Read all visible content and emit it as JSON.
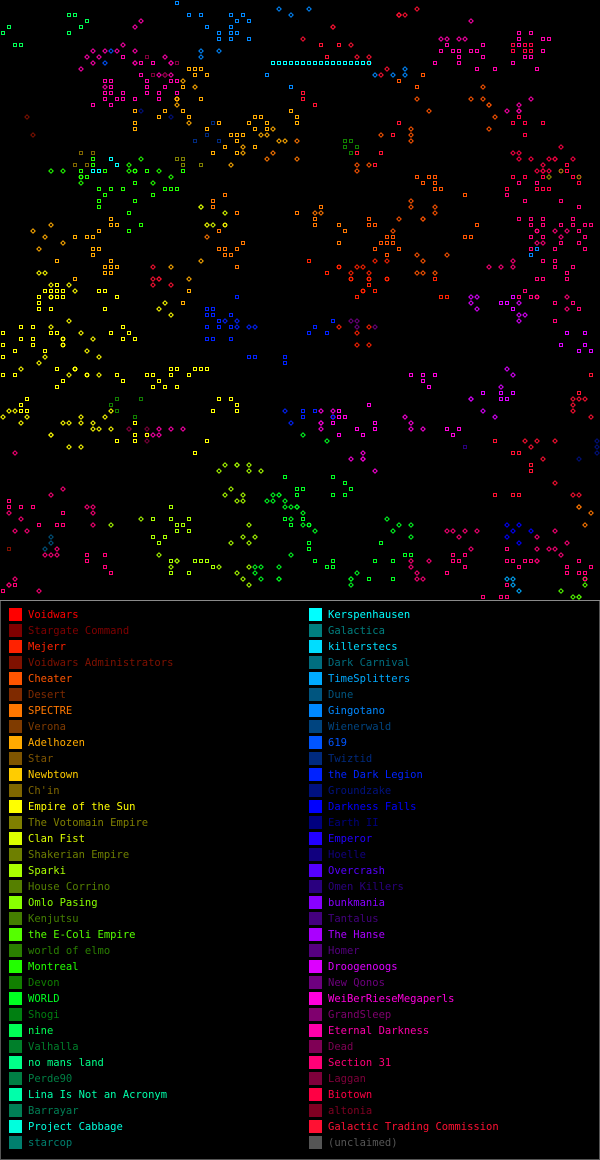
{
  "map": {
    "grid_cells": 100,
    "colors": {
      "background": "#000000",
      "separator": "#8a8a8a"
    }
  },
  "legend": {
    "left": [
      {
        "name": "Voidwars",
        "color": "#ff0000"
      },
      {
        "name": "Stargate Command",
        "color": "#7f0000"
      },
      {
        "name": "Mejerr",
        "color": "#ff2200"
      },
      {
        "name": "Voidwars Administrators",
        "color": "#7f1100"
      },
      {
        "name": "Cheater",
        "color": "#ff5500"
      },
      {
        "name": "Desert",
        "color": "#7f2a00"
      },
      {
        "name": "SPECTRE",
        "color": "#ff7700"
      },
      {
        "name": "Verona",
        "color": "#7f3b00"
      },
      {
        "name": "Adelhozen",
        "color": "#ffaa00"
      },
      {
        "name": "Star",
        "color": "#7f5500"
      },
      {
        "name": "Newbtown",
        "color": "#ffcc00"
      },
      {
        "name": "Ch'in",
        "color": "#7f6600"
      },
      {
        "name": "Empire of the Sun",
        "color": "#ffff00"
      },
      {
        "name": "The Votomain Empire",
        "color": "#7f7f00"
      },
      {
        "name": "Clan Fist",
        "color": "#ddff00"
      },
      {
        "name": "Shakerian Empire",
        "color": "#6e7f00"
      },
      {
        "name": "Sparki",
        "color": "#aaff00"
      },
      {
        "name": "House Corrino",
        "color": "#557f00"
      },
      {
        "name": "Omlo Pasing",
        "color": "#88ff00"
      },
      {
        "name": "Kenjutsu",
        "color": "#447f00"
      },
      {
        "name": "the E-Coli Empire",
        "color": "#55ff00"
      },
      {
        "name": "world of elmo",
        "color": "#2a7f00"
      },
      {
        "name": "Montreal",
        "color": "#22ff00"
      },
      {
        "name": "Devon",
        "color": "#117f00"
      },
      {
        "name": "WORLD",
        "color": "#00ff22"
      },
      {
        "name": "Shogi",
        "color": "#007f11"
      },
      {
        "name": "nine",
        "color": "#00ff55"
      },
      {
        "name": "Valhalla",
        "color": "#007f2a"
      },
      {
        "name": "no mans land",
        "color": "#00ff88"
      },
      {
        "name": "Perde90",
        "color": "#007f44"
      },
      {
        "name": "Lina Is Not an Acronym",
        "color": "#00ffaa"
      },
      {
        "name": "Barrayar",
        "color": "#007f55"
      },
      {
        "name": "Project Cabbage",
        "color": "#00ffdd"
      },
      {
        "name": "starcop",
        "color": "#007f6e"
      }
    ],
    "right": [
      {
        "name": "Kerspenhausen",
        "color": "#00ffff"
      },
      {
        "name": "Galactica",
        "color": "#007f7f"
      },
      {
        "name": "killerstecs",
        "color": "#00ddff"
      },
      {
        "name": "Dark Carnival",
        "color": "#006e7f"
      },
      {
        "name": "TimeSplitters",
        "color": "#00aaff"
      },
      {
        "name": "Dune",
        "color": "#00557f"
      },
      {
        "name": "Gingotano",
        "color": "#0088ff"
      },
      {
        "name": "Wienerwald",
        "color": "#00447f"
      },
      {
        "name": "619",
        "color": "#0055ff"
      },
      {
        "name": "Twiztid",
        "color": "#002a7f"
      },
      {
        "name": "the Dark Legion",
        "color": "#0022ff"
      },
      {
        "name": "Groundzake",
        "color": "#00117f"
      },
      {
        "name": "Darkness Falls",
        "color": "#0000ff"
      },
      {
        "name": "Earth II",
        "color": "#00007f"
      },
      {
        "name": "Emperor",
        "color": "#2200ff"
      },
      {
        "name": "Hoelle",
        "color": "#11007f"
      },
      {
        "name": "Overcrash",
        "color": "#5500ff"
      },
      {
        "name": "Omen Killers",
        "color": "#2a007f"
      },
      {
        "name": "bunkmania",
        "color": "#8800ff"
      },
      {
        "name": "Tantalus",
        "color": "#44007f"
      },
      {
        "name": "The Hanse",
        "color": "#aa00ff"
      },
      {
        "name": "Homer",
        "color": "#55007f"
      },
      {
        "name": "Droogenoogs",
        "color": "#dd00ff"
      },
      {
        "name": "New Qonos",
        "color": "#6e007f"
      },
      {
        "name": "WeiBerRieseMegaperls",
        "color": "#ff00dd"
      },
      {
        "name": "GrandSleep",
        "color": "#7f006e"
      },
      {
        "name": "Eternal Darkness",
        "color": "#ff00aa"
      },
      {
        "name": "Dead",
        "color": "#7f0055"
      },
      {
        "name": "Section 31",
        "color": "#ff0077"
      },
      {
        "name": "Laggan",
        "color": "#7f003b"
      },
      {
        "name": "Biotown",
        "color": "#ff0044"
      },
      {
        "name": "altonia",
        "color": "#7f0022"
      },
      {
        "name": "Galactic Trading Commission",
        "color": "#ff1133"
      },
      {
        "name": "(unclaimed)",
        "color": "#555555"
      }
    ]
  }
}
